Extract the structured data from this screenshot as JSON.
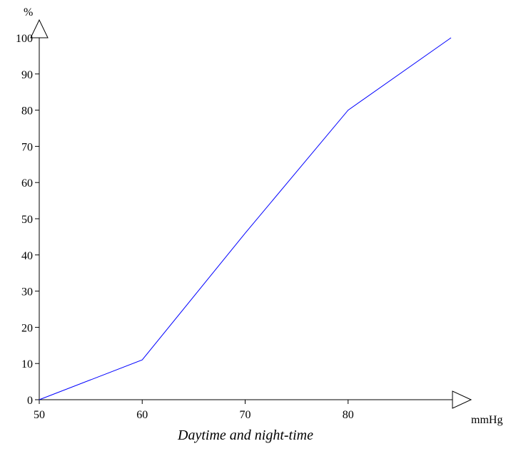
{
  "chart_data": {
    "type": "line",
    "title": "",
    "caption": "Daytime and night-time",
    "xlabel": "mmHg",
    "ylabel": "%",
    "xlim": [
      50,
      90
    ],
    "ylim": [
      0,
      100
    ],
    "x_ticks": [
      50,
      60,
      70,
      80
    ],
    "x_tick_labels": [
      "50",
      "60",
      "70",
      "80"
    ],
    "y_ticks": [
      0,
      10,
      20,
      30,
      40,
      50,
      60,
      70,
      80,
      90,
      100
    ],
    "y_tick_labels": [
      "0",
      "10",
      "20",
      "30",
      "40",
      "50",
      "60",
      "70",
      "80",
      "90",
      "100"
    ],
    "grid": false,
    "series": [
      {
        "color": "#0000ff",
        "points": [
          {
            "x": 50,
            "y": 0
          },
          {
            "x": 60,
            "y": 11
          },
          {
            "x": 70,
            "y": 46
          },
          {
            "x": 80,
            "y": 80
          },
          {
            "x": 90,
            "y": 100
          }
        ]
      }
    ]
  }
}
